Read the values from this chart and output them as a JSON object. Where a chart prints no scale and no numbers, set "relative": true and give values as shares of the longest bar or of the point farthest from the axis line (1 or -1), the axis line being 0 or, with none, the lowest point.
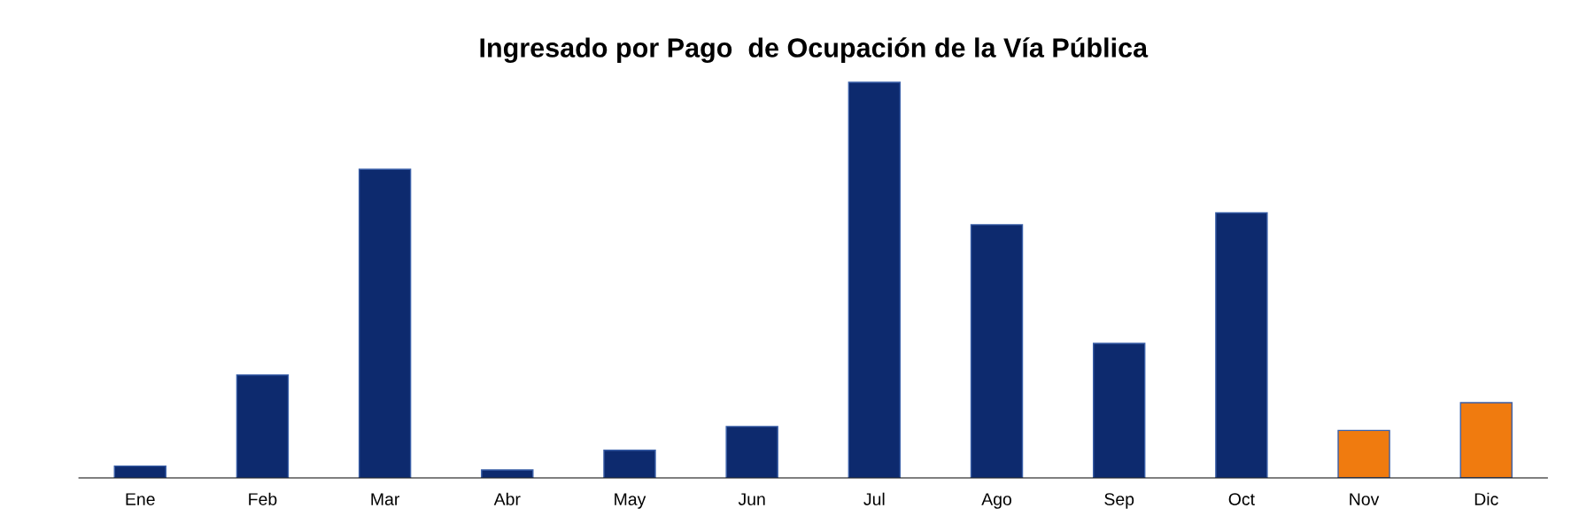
{
  "chart_data": {
    "type": "bar",
    "title": "Ingresado por Pago  de Ocupación de la Vía Pública",
    "relative": true,
    "grid": false,
    "categories": [
      "Ene",
      "Feb",
      "Mar",
      "Abr",
      "May",
      "Jun",
      "Jul",
      "Ago",
      "Sep",
      "Oct",
      "Nov",
      "Dic"
    ],
    "values": [
      0.03,
      0.26,
      0.78,
      0.02,
      0.07,
      0.13,
      1,
      0.64,
      0.34,
      0.67,
      0.12,
      0.19
    ],
    "colors": [
      "#0d2a6e",
      "#0d2a6e",
      "#0d2a6e",
      "#0d2a6e",
      "#0d2a6e",
      "#0d2a6e",
      "#0d2a6e",
      "#0d2a6e",
      "#0d2a6e",
      "#0d2a6e",
      "#f07b0f",
      "#f07b0f"
    ]
  }
}
